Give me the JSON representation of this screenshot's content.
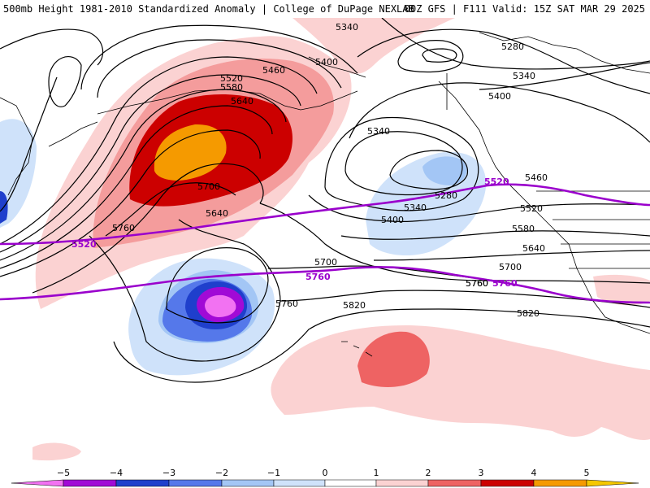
{
  "header": {
    "title_left": "500mb Height 1981-2010 Standardized Anomaly | College of DuPage NEXLAB",
    "title_right": "00Z GFS | F111 Valid: 15Z SAT MAR 29 2025"
  },
  "colors": {
    "pos1": "#fbd2d2",
    "pos2": "#f49c9c",
    "pos3": "#ee6363",
    "pos4": "#cc0000",
    "pos5": "#f59a00",
    "neg1": "#cfe2fa",
    "neg2": "#a3c6f5",
    "neg3": "#5578ea",
    "neg4": "#1f3fcc",
    "neg5": "#a10ad6",
    "neg6": "#f272f2",
    "contour": "#000000",
    "highlight": "#9a00cc"
  },
  "contours": {
    "labels": [
      "5340",
      "5400",
      "5460",
      "5520",
      "5580",
      "5640",
      "5700",
      "5760",
      "5280",
      "5340",
      "5400",
      "5460",
      "5520",
      "5580",
      "5640",
      "5700",
      "5760",
      "5820",
      "5280",
      "5340",
      "5400",
      "5340",
      "5700",
      "5640",
      "5760",
      "5820",
      "5760"
    ],
    "highlight_labels": [
      "5520",
      "5520",
      "5760",
      "5760"
    ]
  },
  "legend": {
    "ticks": [
      "−5",
      "−4",
      "−3",
      "−2",
      "−1",
      "0",
      "1",
      "2",
      "3",
      "4",
      "5"
    ]
  }
}
